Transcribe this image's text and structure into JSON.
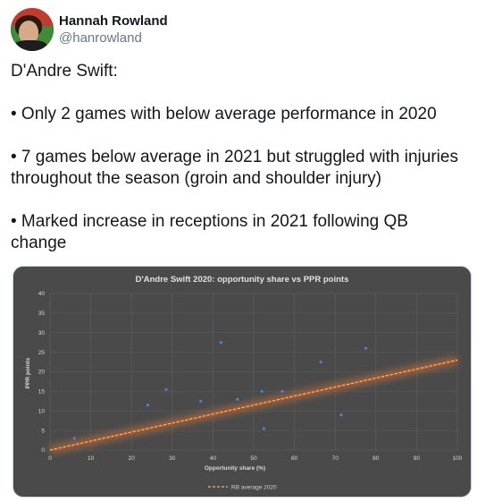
{
  "tweet": {
    "display_name": "Hannah Rowland",
    "handle": "@hanrowland",
    "avatar_icon": "profile-photo",
    "text": "D'Andre Swift:\n\n• Only 2 games with below average performance in 2020\n\n• 7 games below average in 2021 but struggled with injuries throughout the season (groin and shoulder injury)\n\n• Marked increase in receptions in 2021 following QB change"
  },
  "chart_data": {
    "type": "scatter",
    "title": "D'Andre Swift 2020: opportunity share vs PPR points",
    "xlabel": "Opportunity share (%)",
    "ylabel": "PPR points",
    "xlim": [
      0,
      100
    ],
    "ylim": [
      0,
      40
    ],
    "xticks": [
      0,
      10,
      20,
      30,
      40,
      50,
      60,
      70,
      80,
      90,
      100
    ],
    "yticks": [
      0,
      5,
      10,
      15,
      20,
      25,
      30,
      35,
      40
    ],
    "grid": true,
    "legend_position": "bottom",
    "points": [
      {
        "x": 6,
        "y": 3
      },
      {
        "x": 24,
        "y": 11.5
      },
      {
        "x": 28.5,
        "y": 15.5
      },
      {
        "x": 37,
        "y": 12.5
      },
      {
        "x": 42,
        "y": 27.5
      },
      {
        "x": 46,
        "y": 13
      },
      {
        "x": 52,
        "y": 15
      },
      {
        "x": 52.5,
        "y": 5.5
      },
      {
        "x": 57,
        "y": 15
      },
      {
        "x": 66.5,
        "y": 22.5
      },
      {
        "x": 71.5,
        "y": 9
      },
      {
        "x": 77.5,
        "y": 26
      }
    ],
    "trendline": {
      "name": "RB average 2020",
      "x": [
        0,
        100
      ],
      "y": [
        0,
        23
      ]
    },
    "colors": {
      "background": "#4a4a4a",
      "plot_background": "#4d4d4d",
      "points": "#4f7fd6",
      "trendline": "#d07a3a",
      "text": "#d8d8d8",
      "grid": "#5e5e5e"
    }
  }
}
